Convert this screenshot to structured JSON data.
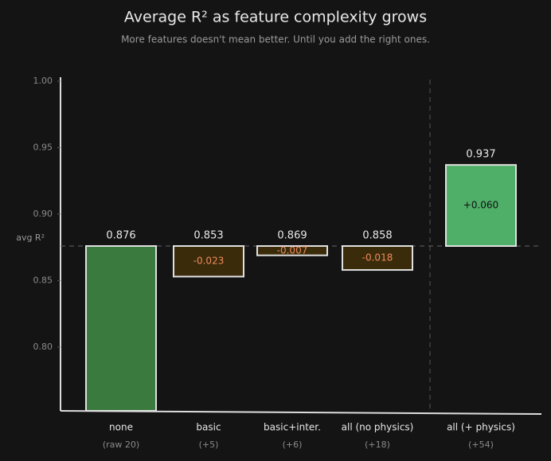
{
  "chart_data": {
    "type": "waterfall",
    "title": "Average R² as feature complexity grows",
    "subtitle": "More features doesn't mean better. Until you add the right ones.",
    "categories": [
      "none",
      "basic",
      "basic+inter.",
      "all (no physics)",
      "all (+ physics)"
    ],
    "sublabels": [
      "(raw 20)",
      "(+5)",
      "(+6)",
      "(+18)",
      "(+54)"
    ],
    "values": [
      0.876,
      0.853,
      0.869,
      0.858,
      0.937
    ],
    "deltas": [
      null,
      -0.023,
      -0.007,
      -0.018,
      0.06
    ],
    "delta_labels": [
      null,
      "-0.023",
      "-0.007",
      "-0.018",
      "+0.060"
    ],
    "baseline": 0.876,
    "baseline_label": "avg R²",
    "colors": {
      "start": "#3b7a3f",
      "decrease": "#3a2c0a",
      "increase": "#4fae68"
    },
    "ylim": [
      0.752,
      1.0
    ],
    "yticks": [
      {
        "value": 0.8,
        "label": "0.80"
      },
      0.85,
      {
        "value": 0.9,
        "label": "0.90"
      },
      0.95,
      {
        "value": 1.0,
        "label": "1.00"
      }
    ]
  }
}
